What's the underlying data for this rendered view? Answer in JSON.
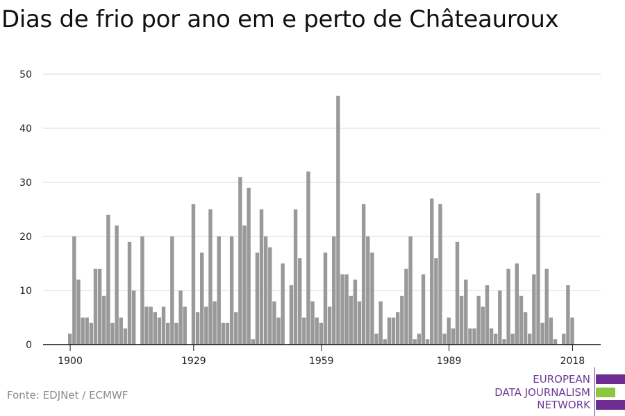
{
  "title": "Dias de frio por ano em e perto de Châteauroux",
  "source": "Fonte: EDJNet / ECMWF",
  "logo": {
    "line1": "EUROPEAN",
    "line2": "DATA JOURNALISM",
    "line3": "NETWORK",
    "colors": {
      "purple": "#6f2c91",
      "green": "#8dc63f"
    }
  },
  "chart_data": {
    "type": "bar",
    "first_year": 1900,
    "x_ticks": [
      "1900",
      "1929",
      "1959",
      "1989",
      "2018"
    ],
    "y_ticks": [
      0,
      10,
      20,
      30,
      40,
      50
    ],
    "ylim": [
      0,
      50
    ],
    "grid": true,
    "bar_color": "#999999",
    "values": [
      2,
      20,
      12,
      5,
      5,
      4,
      14,
      14,
      9,
      24,
      4,
      22,
      5,
      3,
      19,
      10,
      0,
      20,
      7,
      7,
      6,
      5,
      7,
      4,
      20,
      4,
      10,
      7,
      0,
      26,
      6,
      17,
      7,
      25,
      8,
      20,
      4,
      4,
      20,
      6,
      31,
      22,
      29,
      1,
      17,
      25,
      20,
      18,
      8,
      5,
      15,
      0,
      11,
      25,
      16,
      5,
      32,
      8,
      5,
      4,
      17,
      7,
      20,
      46,
      13,
      13,
      9,
      12,
      8,
      26,
      20,
      17,
      2,
      8,
      1,
      5,
      5,
      6,
      9,
      14,
      20,
      1,
      2,
      13,
      1,
      27,
      16,
      26,
      2,
      5,
      3,
      19,
      9,
      12,
      3,
      3,
      9,
      7,
      11,
      3,
      2,
      10,
      1,
      14,
      2,
      15,
      9,
      6,
      2,
      13,
      28,
      4,
      14,
      5,
      1,
      0,
      2,
      11,
      5
    ]
  }
}
